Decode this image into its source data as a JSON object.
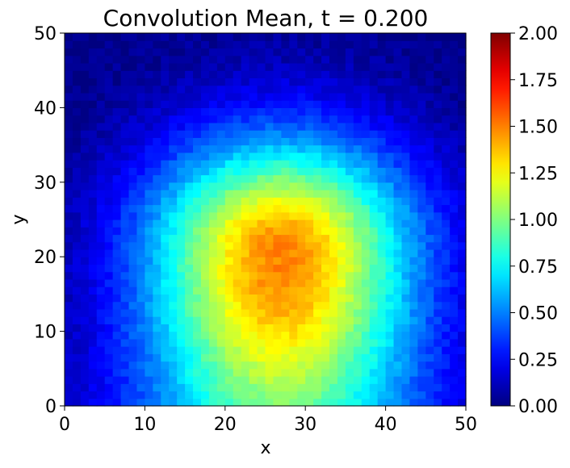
{
  "chart_data": {
    "type": "heatmap",
    "title": "Convolution Mean, t = 0.200",
    "xlabel": "x",
    "ylabel": "y",
    "xlim": [
      0,
      50
    ],
    "ylim": [
      0,
      50
    ],
    "grid": false,
    "colormap": "jet",
    "clim": [
      0,
      2
    ],
    "xticks": [
      "0",
      "10",
      "20",
      "30",
      "40",
      "50"
    ],
    "yticks": [
      "0",
      "10",
      "20",
      "30",
      "40",
      "50"
    ],
    "colorbar_ticks": [
      "0.00",
      "0.25",
      "0.50",
      "0.75",
      "1.00",
      "1.25",
      "1.50",
      "1.75",
      "2.00"
    ],
    "field": {
      "grid_size": [
        50,
        50
      ],
      "description": "per-cell mean value over a 50x50 grid; values peak near (27, 21) at about 1.35 and decay toward the edges",
      "peak": {
        "x": 27,
        "y": 21,
        "value": 1.38
      },
      "edge_value_top": 0.02,
      "edge_value_bottom": 0.35,
      "noise_amplitude": 0.05
    }
  }
}
